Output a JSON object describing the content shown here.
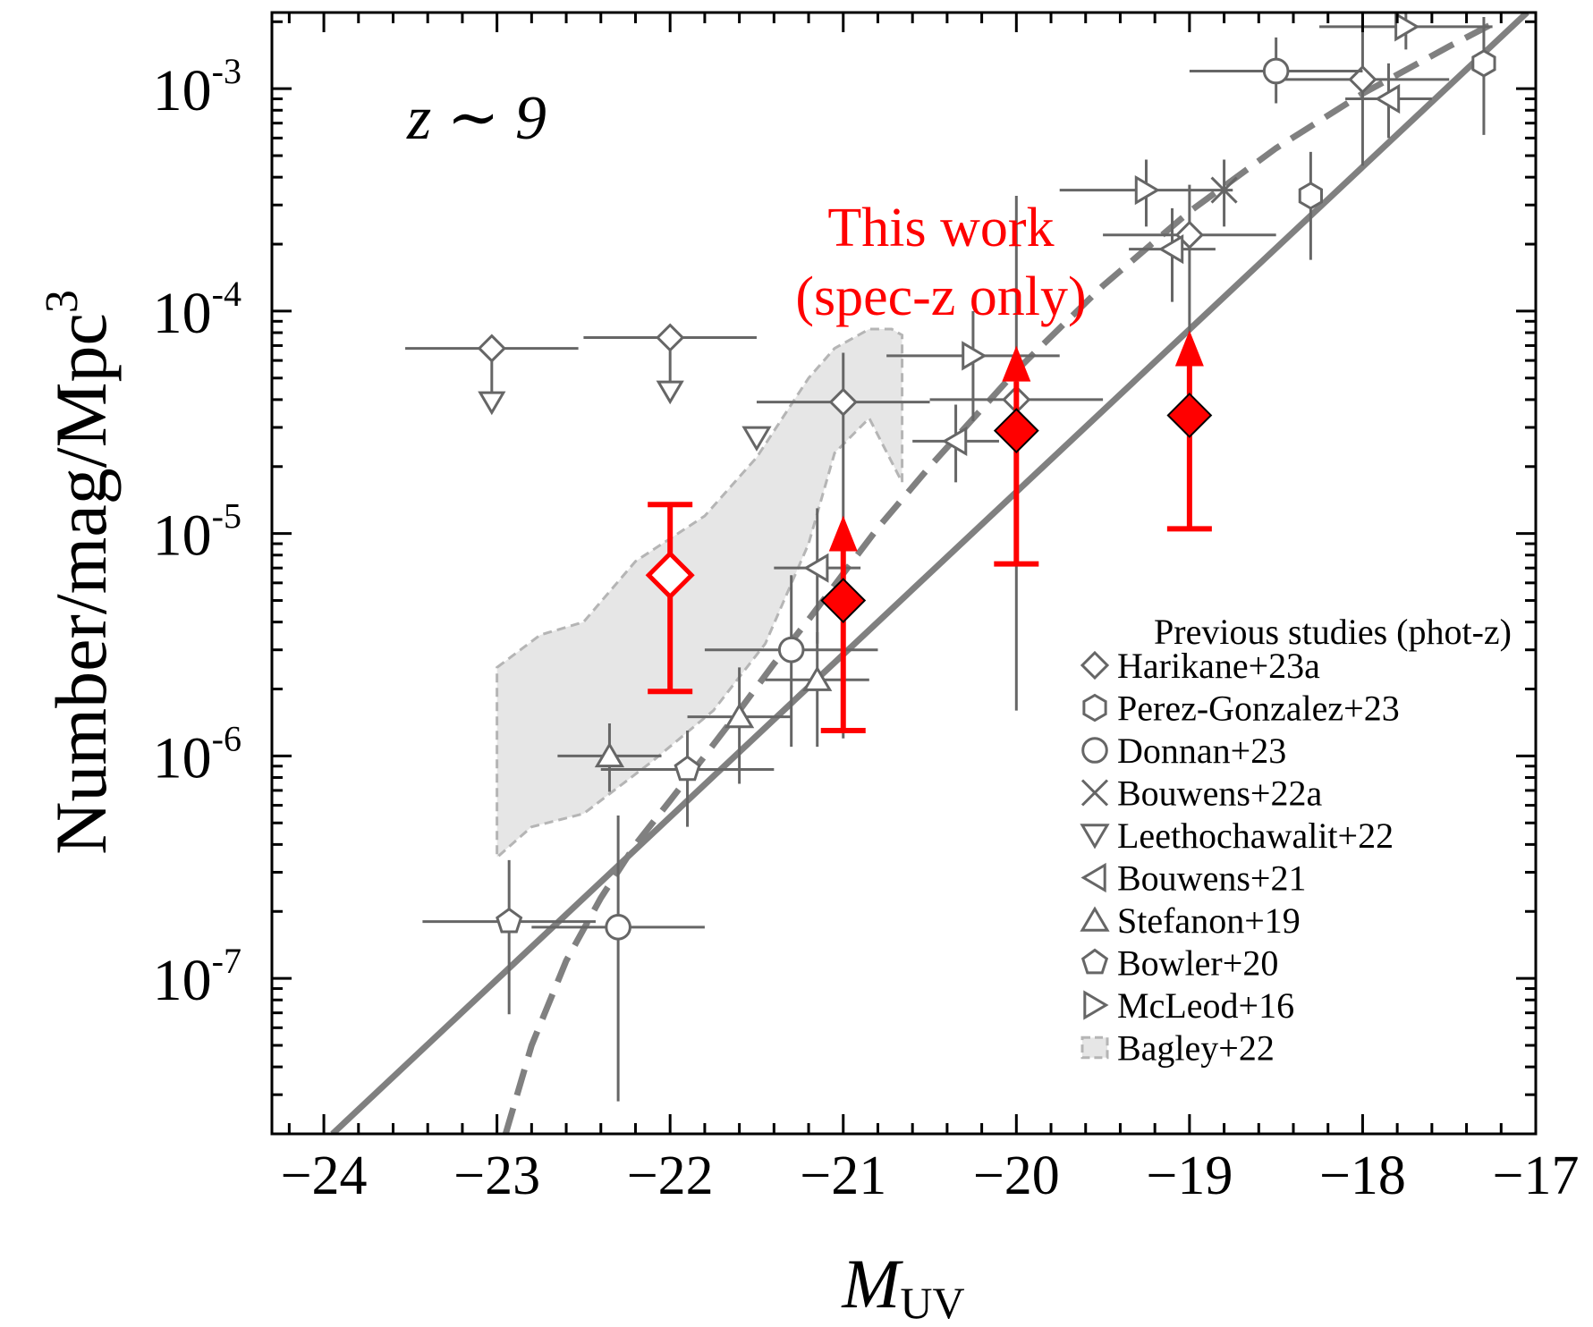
{
  "colors": {
    "data": "#666666",
    "thiswork": "#ff0000",
    "axis": "#000000",
    "band_fill": "#e6e6e6",
    "band_edge": "#b5b5b5",
    "fit": "#808080"
  },
  "chart_data": {
    "type": "scatter",
    "xlabel_main": "M",
    "xlabel_sub": "UV",
    "ylabel_text": "Number/mag/Mpc",
    "ylabel_sup": "3",
    "xlim": [
      -24.3,
      -17.0
    ],
    "ylim": [
      2e-08,
      0.0022
    ],
    "yscale": "log",
    "x_ticks": [
      {
        "value": -24,
        "label": "−24"
      },
      {
        "value": -23,
        "label": "−23"
      },
      {
        "value": -22,
        "label": "−22"
      },
      {
        "value": -21,
        "label": "−21"
      },
      {
        "value": -20,
        "label": "−20"
      },
      {
        "value": -19,
        "label": "−19"
      },
      {
        "value": -18,
        "label": "−18"
      },
      {
        "value": -17,
        "label": "−17"
      }
    ],
    "y_ticks": [
      {
        "value": 1e-07,
        "base": "10",
        "exp": "-7"
      },
      {
        "value": 1e-06,
        "base": "10",
        "exp": "-6"
      },
      {
        "value": 1e-05,
        "base": "10",
        "exp": "-5"
      },
      {
        "value": 0.0001,
        "base": "10",
        "exp": "-4"
      },
      {
        "value": 0.001,
        "base": "10",
        "exp": "-3"
      }
    ],
    "panel_label": "z ∼ 9",
    "annotation_line1": "This work",
    "annotation_line2": "(spec-z only)",
    "legend_title": "Previous studies (phot-z)",
    "legend_placement": "bottom-right",
    "series": [
      {
        "name": "Harikane+23a",
        "marker": "diamond",
        "points": [
          {
            "x": -23.03,
            "y": 6.8e-05,
            "xerr": 0.5,
            "upper": true
          },
          {
            "x": -22.0,
            "y": 7.6e-05,
            "xerr": 0.5,
            "upper": true
          },
          {
            "x": -21.0,
            "y": 3.9e-05,
            "xerr": 0.5,
            "ylo": 1.2e-06,
            "yhi": 6.5e-05
          },
          {
            "x": -20.0,
            "y": 4e-05,
            "xerr": 0.5,
            "ylo": 1.6e-06,
            "yhi": 0.00033
          },
          {
            "x": -19.0,
            "y": 0.00022,
            "xerr": 0.5,
            "ylo": 8e-05,
            "yhi": 0.00037
          },
          {
            "x": -18.0,
            "y": 0.0011,
            "xerr": 0.5,
            "ylo": 0.00045,
            "yhi": 0.0021
          }
        ]
      },
      {
        "name": "Perez-Gonzalez+23",
        "marker": "hexagon",
        "points": [
          {
            "x": -18.3,
            "y": 0.00033,
            "ylo": 0.00017,
            "yhi": 0.00052
          },
          {
            "x": -17.3,
            "y": 0.0013,
            "ylo": 0.00062,
            "yhi": 0.0021
          }
        ]
      },
      {
        "name": "Donnan+23",
        "marker": "circle",
        "points": [
          {
            "x": -22.3,
            "y": 1.7e-07,
            "xerr": 0.5,
            "ylo": 2.8e-08,
            "yhi": 5.4e-07
          },
          {
            "x": -21.3,
            "y": 3e-06,
            "xerr": 0.5,
            "ylo": 1.1e-06,
            "yhi": 6.5e-06
          },
          {
            "x": -18.5,
            "y": 0.0012,
            "xerr": 0.5,
            "ylo": 0.00086,
            "yhi": 0.0017
          }
        ]
      },
      {
        "name": "Bouwens+22a",
        "marker": "cross",
        "points": [
          {
            "x": -18.8,
            "y": 0.00035,
            "ylo": 0.00024,
            "yhi": 0.00048
          }
        ]
      },
      {
        "name": "Leethochawalit+22",
        "marker": "triangle-down",
        "points": [
          {
            "x": -21.5,
            "y": 2.7e-05,
            "upper": false
          }
        ]
      },
      {
        "name": "Bouwens+21",
        "marker": "triangle-left",
        "points": [
          {
            "x": -21.15,
            "y": 7e-06,
            "xerr": 0.25,
            "ylo": 3.2e-06,
            "yhi": 1.3e-05
          },
          {
            "x": -20.35,
            "y": 2.6e-05,
            "xerr": 0.25,
            "ylo": 1.7e-05,
            "yhi": 3.8e-05
          },
          {
            "x": -19.1,
            "y": 0.00019,
            "xerr": 0.25,
            "ylo": 0.00011,
            "yhi": 0.00029
          },
          {
            "x": -17.85,
            "y": 0.0009,
            "xerr": 0.25,
            "ylo": 0.0006,
            "yhi": 0.0013
          }
        ]
      },
      {
        "name": "Stefanon+19",
        "marker": "triangle-up",
        "points": [
          {
            "x": -22.35,
            "y": 1e-06,
            "xerr": 0.3,
            "ylo": 6.9e-07,
            "yhi": 1.4e-06
          },
          {
            "x": -21.6,
            "y": 1.5e-06,
            "xerr": 0.3,
            "ylo": 7.5e-07,
            "yhi": 2.5e-06
          },
          {
            "x": -21.15,
            "y": 2.2e-06,
            "xerr": 0.3,
            "ylo": 1.1e-06,
            "yhi": 3.6e-06
          }
        ]
      },
      {
        "name": "Bowler+20",
        "marker": "pentagon",
        "points": [
          {
            "x": -22.93,
            "y": 1.8e-07,
            "xerr": 0.5,
            "ylo": 6.9e-08,
            "yhi": 3.4e-07
          },
          {
            "x": -21.9,
            "y": 8.7e-07,
            "xerr": 0.5,
            "ylo": 4.8e-07,
            "yhi": 1.3e-06
          }
        ]
      },
      {
        "name": "McLeod+16",
        "marker": "triangle-right",
        "points": [
          {
            "x": -20.25,
            "y": 6.3e-05,
            "xerr": 0.5,
            "ylo": 3.2e-05,
            "yhi": 0.0001
          },
          {
            "x": -19.25,
            "y": 0.00035,
            "xerr": 0.5,
            "ylo": 0.00024,
            "yhi": 0.00048
          },
          {
            "x": -17.75,
            "y": 0.0019,
            "xerr": 0.5,
            "ylo": 0.0015,
            "yhi": 0.0023
          }
        ]
      },
      {
        "name": "Bagley+22",
        "marker": "band",
        "upper_edge": [
          [
            -23.0,
            2.5e-06
          ],
          [
            -22.75,
            3.5e-06
          ],
          [
            -22.5,
            4e-06
          ],
          [
            -22.2,
            7.5e-06
          ],
          [
            -21.8,
            1.2e-05
          ],
          [
            -21.5,
            2.2e-05
          ],
          [
            -21.2,
            5e-05
          ],
          [
            -21.05,
            6.8e-05
          ],
          [
            -20.85,
            8.3e-05
          ],
          [
            -20.72,
            8.3e-05
          ],
          [
            -20.66,
            7.8e-05
          ]
        ],
        "lower_edge": [
          [
            -20.66,
            1.7e-05
          ],
          [
            -20.85,
            3.3e-05
          ],
          [
            -21.05,
            2.3e-05
          ],
          [
            -21.2,
            9e-06
          ],
          [
            -21.45,
            3.2e-06
          ],
          [
            -21.75,
            1.6e-06
          ],
          [
            -22.1,
            9.5e-07
          ],
          [
            -22.5,
            5.5e-07
          ],
          [
            -22.8,
            4.8e-07
          ],
          [
            -23.0,
            3.5e-07
          ]
        ]
      }
    ],
    "this_work": [
      {
        "x": -22.0,
        "y": 6.5e-06,
        "ylo": 1.95e-06,
        "yhi": 1.35e-05,
        "filled": false,
        "lower_limit": false
      },
      {
        "x": -21.0,
        "y": 5e-06,
        "ylo": 1.3e-06,
        "filled": true,
        "lower_limit": true
      },
      {
        "x": -20.0,
        "y": 2.9e-05,
        "ylo": 7.3e-06,
        "filled": true,
        "lower_limit": true
      },
      {
        "x": -19.0,
        "y": 3.4e-05,
        "ylo": 1.05e-05,
        "filled": true,
        "lower_limit": true
      }
    ],
    "fits": [
      {
        "style": "solid",
        "points": [
          [
            -23.95,
            2e-08
          ],
          [
            -17.05,
            0.0022
          ]
        ]
      },
      {
        "style": "dashed",
        "points": [
          [
            -22.95,
            2e-08
          ],
          [
            -22.8,
            5e-08
          ],
          [
            -22.6,
            1.2e-07
          ],
          [
            -22.4,
            2.3e-07
          ],
          [
            -22.2,
            4e-07
          ],
          [
            -22.0,
            6.3e-07
          ],
          [
            -21.8,
            1e-06
          ],
          [
            -21.6,
            1.6e-06
          ],
          [
            -21.4,
            2.6e-06
          ],
          [
            -21.2,
            4.1e-06
          ],
          [
            -21.0,
            6.6e-06
          ],
          [
            -20.8,
            1.06e-05
          ],
          [
            -20.5,
            2e-05
          ],
          [
            -20.0,
            5.4e-05
          ],
          [
            -19.5,
            0.00013
          ],
          [
            -19.0,
            0.00028
          ],
          [
            -18.5,
            0.00054
          ],
          [
            -18.0,
            0.00095
          ],
          [
            -17.5,
            0.00155
          ],
          [
            -17.2,
            0.00205
          ]
        ]
      }
    ]
  }
}
